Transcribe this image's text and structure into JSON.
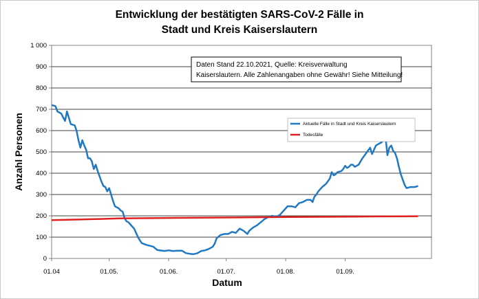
{
  "chart_data": {
    "type": "line",
    "title": [
      "Entwicklung der bestätigten SARS-CoV-2 Fälle in",
      "Stadt und Kreis Kaiserslautern"
    ],
    "xlabel": "Datum",
    "ylabel": "Anzahl Personen",
    "ylim": [
      0,
      1000
    ],
    "y_ticks": [
      0,
      100,
      200,
      300,
      400,
      500,
      600,
      700,
      800,
      900,
      1000
    ],
    "y_tick_labels": [
      "0",
      "100",
      "200",
      "300",
      "400",
      "500",
      "600",
      "700",
      "800",
      "900",
      "1 000"
    ],
    "x_tick_labels": [
      "01.04",
      "01.05.",
      "01.06.",
      "01.07.",
      "01.08.",
      "01.09."
    ],
    "x_tick_days": [
      0,
      30,
      61,
      91,
      122,
      153
    ],
    "xlim_days": [
      0,
      198
    ],
    "grid": "horizontal",
    "annotation": [
      "Daten Stand 22.10.2021, Quelle: Kreisverwaltung",
      "Kaiserslautern. Alle Zahlenangaben ohne Gewähr! Siehe Mitteilung!"
    ],
    "legend_position": "right",
    "series": [
      {
        "name": "Aktuelle Fälle in Stadt und Kreis Kaiserslautern",
        "color": "#1f78c1",
        "points": [
          [
            0,
            720
          ],
          [
            2,
            715
          ],
          [
            3,
            690
          ],
          [
            5,
            680
          ],
          [
            7,
            645
          ],
          [
            8,
            690
          ],
          [
            9,
            660
          ],
          [
            10,
            630
          ],
          [
            12,
            625
          ],
          [
            13,
            600
          ],
          [
            14,
            555
          ],
          [
            15,
            520
          ],
          [
            16,
            555
          ],
          [
            17,
            530
          ],
          [
            18,
            510
          ],
          [
            19,
            470
          ],
          [
            20,
            470
          ],
          [
            21,
            455
          ],
          [
            22,
            420
          ],
          [
            23,
            440
          ],
          [
            24,
            410
          ],
          [
            25,
            385
          ],
          [
            26,
            360
          ],
          [
            27,
            340
          ],
          [
            28,
            335
          ],
          [
            29,
            315
          ],
          [
            30,
            330
          ],
          [
            31,
            300
          ],
          [
            32,
            270
          ],
          [
            33,
            245
          ],
          [
            34,
            240
          ],
          [
            35,
            235
          ],
          [
            36,
            225
          ],
          [
            37,
            220
          ],
          [
            38,
            190
          ],
          [
            39,
            175
          ],
          [
            40,
            170
          ],
          [
            41,
            160
          ],
          [
            42,
            150
          ],
          [
            43,
            140
          ],
          [
            44,
            120
          ],
          [
            45,
            100
          ],
          [
            46,
            85
          ],
          [
            47,
            72
          ],
          [
            49,
            65
          ],
          [
            51,
            60
          ],
          [
            53,
            55
          ],
          [
            55,
            40
          ],
          [
            57,
            37
          ],
          [
            59,
            35
          ],
          [
            61,
            38
          ],
          [
            63,
            35
          ],
          [
            66,
            36
          ],
          [
            68,
            36
          ],
          [
            70,
            25
          ],
          [
            72,
            22
          ],
          [
            74,
            20
          ],
          [
            76,
            25
          ],
          [
            78,
            35
          ],
          [
            80,
            38
          ],
          [
            82,
            45
          ],
          [
            84,
            55
          ],
          [
            85,
            70
          ],
          [
            86,
            95
          ],
          [
            88,
            110
          ],
          [
            90,
            115
          ],
          [
            92,
            115
          ],
          [
            94,
            125
          ],
          [
            96,
            120
          ],
          [
            98,
            140
          ],
          [
            100,
            130
          ],
          [
            102,
            115
          ],
          [
            103,
            130
          ],
          [
            105,
            145
          ],
          [
            107,
            155
          ],
          [
            109,
            170
          ],
          [
            111,
            185
          ],
          [
            113,
            195
          ],
          [
            115,
            200
          ],
          [
            117,
            195
          ],
          [
            119,
            205
          ],
          [
            121,
            225
          ],
          [
            123,
            245
          ],
          [
            125,
            245
          ],
          [
            127,
            240
          ],
          [
            129,
            260
          ],
          [
            131,
            265
          ],
          [
            133,
            275
          ],
          [
            135,
            275
          ],
          [
            136,
            265
          ],
          [
            137,
            290
          ],
          [
            138,
            300
          ],
          [
            139,
            315
          ],
          [
            141,
            335
          ],
          [
            143,
            350
          ],
          [
            145,
            375
          ],
          [
            146,
            405
          ],
          [
            147,
            390
          ],
          [
            148,
            395
          ],
          [
            149,
            405
          ],
          [
            151,
            410
          ],
          [
            152,
            420
          ],
          [
            153,
            435
          ],
          [
            154,
            425
          ],
          [
            155,
            430
          ],
          [
            156,
            440
          ],
          [
            157,
            440
          ],
          [
            158,
            430
          ],
          [
            160,
            440
          ],
          [
            162,
            470
          ],
          [
            164,
            495
          ],
          [
            166,
            520
          ],
          [
            167,
            490
          ],
          [
            168,
            510
          ],
          [
            169,
            530
          ],
          [
            170,
            535
          ],
          [
            172,
            545
          ],
          [
            173,
            560
          ],
          [
            174,
            575
          ],
          [
            175,
            485
          ],
          [
            176,
            520
          ],
          [
            177,
            530
          ],
          [
            178,
            505
          ],
          [
            179,
            495
          ],
          [
            180,
            470
          ],
          [
            181,
            430
          ],
          [
            182,
            395
          ],
          [
            183,
            370
          ],
          [
            184,
            345
          ],
          [
            185,
            330
          ],
          [
            187,
            335
          ],
          [
            189,
            335
          ],
          [
            190,
            337
          ],
          [
            191,
            340
          ]
        ]
      },
      {
        "name": "Todesfälle",
        "color": "#e02020",
        "points": [
          [
            0,
            180
          ],
          [
            10,
            182
          ],
          [
            25,
            185
          ],
          [
            35,
            188
          ],
          [
            60,
            190
          ],
          [
            100,
            193
          ],
          [
            130,
            195
          ],
          [
            155,
            196
          ],
          [
            170,
            197
          ],
          [
            191,
            198
          ]
        ]
      }
    ]
  }
}
